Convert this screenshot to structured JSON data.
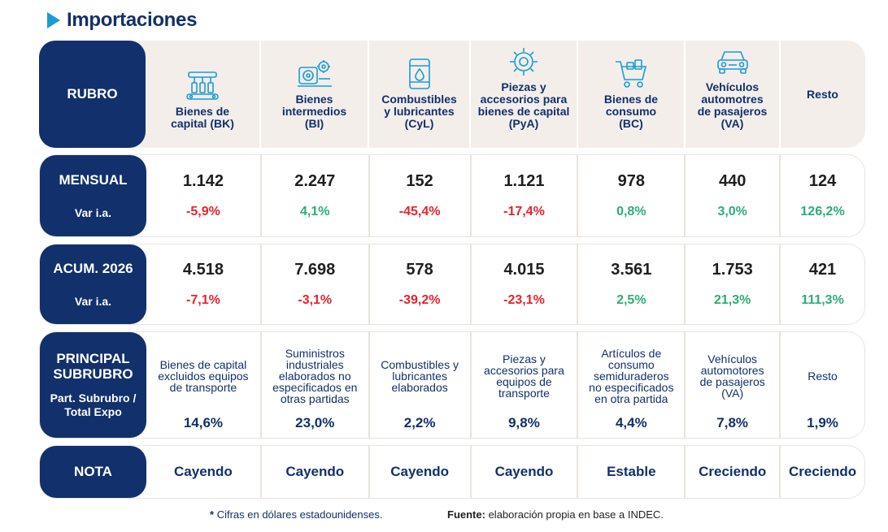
{
  "title": "Importaciones",
  "colors": {
    "navy": "#12306b",
    "accent": "#1a9bd7",
    "negative": "#e3242b",
    "positive": "#2bae77",
    "header_bg": "#f3eeea"
  },
  "header": {
    "label": "RUBRO",
    "columns": [
      {
        "icon": "factory-machine-icon",
        "lines": [
          "Bienes de",
          "capital (BK)"
        ]
      },
      {
        "icon": "gears-materials-icon",
        "lines": [
          "Bienes",
          "intermedios",
          "(BI)"
        ]
      },
      {
        "icon": "fuel-barrel-icon",
        "lines": [
          "Combustibles",
          "y lubricantes",
          "(CyL)"
        ]
      },
      {
        "icon": "gear-parts-icon",
        "lines": [
          "Piezas y",
          "accesorios para",
          "bienes de capital",
          "(PyA)"
        ]
      },
      {
        "icon": "shopping-cart-icon",
        "lines": [
          "Bienes de",
          "consumo",
          "(BC)"
        ]
      },
      {
        "icon": "car-icon",
        "lines": [
          "Vehículos",
          "automotres",
          "de pasajeros",
          "(VA)"
        ]
      },
      {
        "icon": "",
        "lines": [
          "Resto"
        ]
      }
    ]
  },
  "mensual": {
    "label": "MENSUAL",
    "sublabel": "Var i.a.",
    "values": [
      "1.142",
      "2.247",
      "152",
      "1.121",
      "978",
      "440",
      "124"
    ],
    "vars": [
      {
        "text": "-5,9%",
        "sign": "neg"
      },
      {
        "text": "4,1%",
        "sign": "pos"
      },
      {
        "text": "-45,4%",
        "sign": "neg"
      },
      {
        "text": "-17,4%",
        "sign": "neg"
      },
      {
        "text": "0,8%",
        "sign": "pos"
      },
      {
        "text": "3,0%",
        "sign": "pos"
      },
      {
        "text": "126,2%",
        "sign": "pos"
      }
    ]
  },
  "acumulado": {
    "label": "ACUM. 2026",
    "sublabel": "Var i.a.",
    "values": [
      "4.518",
      "7.698",
      "578",
      "4.015",
      "3.561",
      "1.753",
      "421"
    ],
    "vars": [
      {
        "text": "-7,1%",
        "sign": "neg"
      },
      {
        "text": "-3,1%",
        "sign": "neg"
      },
      {
        "text": "-39,2%",
        "sign": "neg"
      },
      {
        "text": "-23,1%",
        "sign": "neg"
      },
      {
        "text": "2,5%",
        "sign": "pos"
      },
      {
        "text": "21,3%",
        "sign": "pos"
      },
      {
        "text": "111,3%",
        "sign": "pos"
      }
    ]
  },
  "subrubro": {
    "label_lines": [
      "PRINCIPAL",
      "SUBRUBRO"
    ],
    "sublabel_lines": [
      "Part. Subrubro /",
      "Total Expo"
    ],
    "items": [
      {
        "lines": [
          "Bienes de capital",
          "excluidos equipos",
          "de transporte"
        ],
        "pct": "14,6%"
      },
      {
        "lines": [
          "Suministros",
          "industriales",
          "elaborados no",
          "especificados en",
          "otras partidas"
        ],
        "pct": "23,0%"
      },
      {
        "lines": [
          "Combustibles y",
          "lubricantes",
          "elaborados"
        ],
        "pct": "2,2%"
      },
      {
        "lines": [
          "Piezas y",
          "accesorios para",
          "equipos de",
          "transporte"
        ],
        "pct": "9,8%"
      },
      {
        "lines": [
          "Artículos de",
          "consumo",
          "semiduraderos",
          "no especificados",
          "en otra partida"
        ],
        "pct": "4,4%"
      },
      {
        "lines": [
          "Vehículos",
          "automotores",
          "de pasajeros",
          "(VA)"
        ],
        "pct": "7,8%"
      },
      {
        "lines": [
          "Resto"
        ],
        "pct": "1,9%"
      }
    ]
  },
  "nota": {
    "label": "NOTA",
    "values": [
      "Cayendo",
      "Cayendo",
      "Cayendo",
      "Cayendo",
      "Estable",
      "Creciendo",
      "Creciendo"
    ]
  },
  "footer": {
    "note_star": "*",
    "note_text": "Cifras en dólares estadounidenses.",
    "source_label": "Fuente:",
    "source_text": "elaboración propia en base a INDEC."
  }
}
